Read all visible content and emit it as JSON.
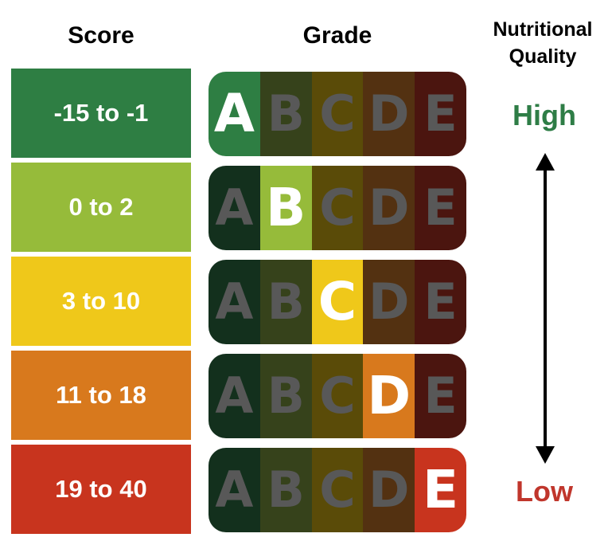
{
  "headers": {
    "score": "Score",
    "grade": "Grade",
    "quality": "Nutritional Quality"
  },
  "quality": {
    "high": "High",
    "low": "Low",
    "high_color": "#2e7d46",
    "low_color": "#c0362c"
  },
  "rows": [
    {
      "score": "-15 to -1",
      "grade": "A",
      "color": "#2e7e43"
    },
    {
      "score": "0 to 2",
      "grade": "B",
      "color": "#96bb3a"
    },
    {
      "score": "3 to 10",
      "grade": "C",
      "color": "#efc81a"
    },
    {
      "score": "11 to 18",
      "grade": "D",
      "color": "#d8791d"
    },
    {
      "score": "19 to 40",
      "grade": "E",
      "color": "#c8341e"
    }
  ],
  "grade_letters": [
    "A",
    "B",
    "C",
    "D",
    "E"
  ],
  "grade_dim_colors": [
    "#13301d",
    "#36421b",
    "#5a4b08",
    "#533111",
    "#4b150f"
  ]
}
